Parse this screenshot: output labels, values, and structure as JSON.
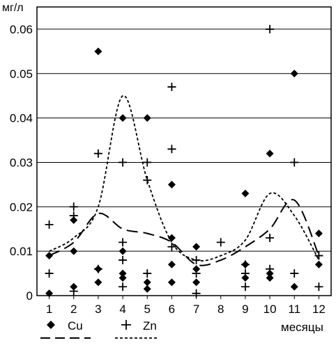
{
  "chart_data": {
    "type": "scatter",
    "ylabel": "мг/л",
    "xlabel": "месяцы",
    "x_ticks": [
      "1",
      "2",
      "3",
      "4",
      "5",
      "6",
      "7",
      "8",
      "9",
      "10",
      "11",
      "12"
    ],
    "y_ticks": [
      "0",
      "0.01",
      "0.02",
      "0.03",
      "0.04",
      "0.05",
      "0.06"
    ],
    "xlim": [
      0.5,
      12.5
    ],
    "ylim": [
      0,
      0.065
    ],
    "grid": "horizontal",
    "legend_position": "bottom-left",
    "series": [
      {
        "name": "Cu",
        "marker": "diamond",
        "color": "#000000",
        "points": [
          [
            1,
            0.009
          ],
          [
            1,
            0.0005
          ],
          [
            2,
            0.017
          ],
          [
            2,
            0.01
          ],
          [
            2,
            0.002
          ],
          [
            3,
            0.055
          ],
          [
            3,
            0.006
          ],
          [
            3,
            0.003
          ],
          [
            4,
            0.04
          ],
          [
            4,
            0.01
          ],
          [
            4,
            0.005
          ],
          [
            4,
            0.004
          ],
          [
            5,
            0.04
          ],
          [
            5,
            0.003
          ],
          [
            5,
            0.0015
          ],
          [
            6,
            0.025
          ],
          [
            6,
            0.013
          ],
          [
            6,
            0.007
          ],
          [
            6,
            0.003
          ],
          [
            7,
            0.011
          ],
          [
            7,
            0.006
          ],
          [
            7,
            0.003
          ],
          [
            9,
            0.023
          ],
          [
            9,
            0.007
          ],
          [
            9,
            0.004
          ],
          [
            10,
            0.032
          ],
          [
            10,
            0.005
          ],
          [
            10,
            0.004
          ],
          [
            11,
            0.05
          ],
          [
            11,
            0.002
          ],
          [
            12,
            0.014
          ],
          [
            12,
            0.007
          ]
        ]
      },
      {
        "name": "Zn",
        "marker": "plus",
        "color": "#000000",
        "points": [
          [
            1,
            0.016
          ],
          [
            1,
            0.005
          ],
          [
            2,
            0.02
          ],
          [
            2,
            0.018
          ],
          [
            2,
            0.001
          ],
          [
            3,
            0.032
          ],
          [
            3,
            0.006
          ],
          [
            4,
            0.03
          ],
          [
            4,
            0.012
          ],
          [
            4,
            0.008
          ],
          [
            4,
            0.002
          ],
          [
            5,
            0.03
          ],
          [
            5,
            0.026
          ],
          [
            5,
            0.005
          ],
          [
            6,
            0.047
          ],
          [
            6,
            0.033
          ],
          [
            6,
            0.011
          ],
          [
            7,
            0.008
          ],
          [
            7,
            0.005
          ],
          [
            7,
            0.0005
          ],
          [
            8,
            0.012
          ],
          [
            9,
            0.007
          ],
          [
            9,
            0.005
          ],
          [
            9,
            0.002
          ],
          [
            10,
            0.06
          ],
          [
            10,
            0.013
          ],
          [
            10,
            0.006
          ],
          [
            11,
            0.03
          ],
          [
            11,
            0.005
          ],
          [
            12,
            0.009
          ],
          [
            12,
            0.002
          ]
        ]
      }
    ],
    "trend_lines": [
      {
        "series": "Cu",
        "style": "long-dash",
        "points": [
          [
            1,
            0.009
          ],
          [
            2,
            0.012
          ],
          [
            3,
            0.0185
          ],
          [
            4,
            0.015
          ],
          [
            5,
            0.014
          ],
          [
            6,
            0.012
          ],
          [
            7,
            0.007
          ],
          [
            8,
            0.008
          ],
          [
            9,
            0.011
          ],
          [
            10,
            0.015
          ],
          [
            11,
            0.0215
          ],
          [
            12,
            0.009
          ]
        ]
      },
      {
        "series": "Zn",
        "style": "short-dash",
        "points": [
          [
            1,
            0.01
          ],
          [
            2,
            0.013
          ],
          [
            3,
            0.02
          ],
          [
            4,
            0.045
          ],
          [
            5,
            0.026
          ],
          [
            6,
            0.012
          ],
          [
            7,
            0.008
          ],
          [
            8,
            0.009
          ],
          [
            9,
            0.0125
          ],
          [
            10,
            0.023
          ],
          [
            11,
            0.018
          ],
          [
            12,
            0.008
          ]
        ]
      }
    ]
  }
}
